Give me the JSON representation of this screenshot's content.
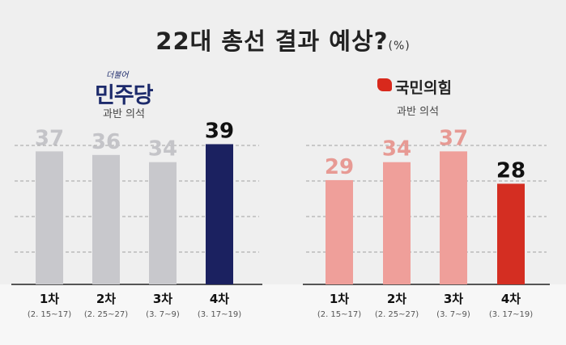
{
  "title": "22대 총선 결과 예상?",
  "title_unit": "(%)",
  "chart_data": [
    {
      "type": "bar",
      "party": "민주당",
      "party_tag": "더불어",
      "subtitle": "과반 의석",
      "categories": [
        "1차",
        "2차",
        "3차",
        "4차"
      ],
      "dates": [
        "(2. 15~17)",
        "(2. 25~27)",
        "(3. 7~9)",
        "(3. 17~19)"
      ],
      "values": [
        37,
        36,
        34,
        39
      ],
      "colors": [
        "#c8c8cc",
        "#c8c8cc",
        "#c8c8cc",
        "#1b2160"
      ],
      "label_colors": [
        "#c4c4c8",
        "#c4c4c8",
        "#c4c4c8",
        "#111111"
      ],
      "grid": true
    },
    {
      "type": "bar",
      "party": "국민의힘",
      "subtitle": "과반 의석",
      "logo_color": "#d8291c",
      "categories": [
        "1차",
        "2차",
        "3차",
        "4차"
      ],
      "dates": [
        "(2. 15~17)",
        "(2. 25~27)",
        "(3. 7~9)",
        "(3. 17~19)"
      ],
      "values": [
        29,
        34,
        37,
        28
      ],
      "colors": [
        "#ef9f9a",
        "#ef9f9a",
        "#ef9f9a",
        "#d42e22"
      ],
      "label_colors": [
        "#e79a94",
        "#e79a94",
        "#e79a94",
        "#111111"
      ],
      "grid": true
    }
  ]
}
